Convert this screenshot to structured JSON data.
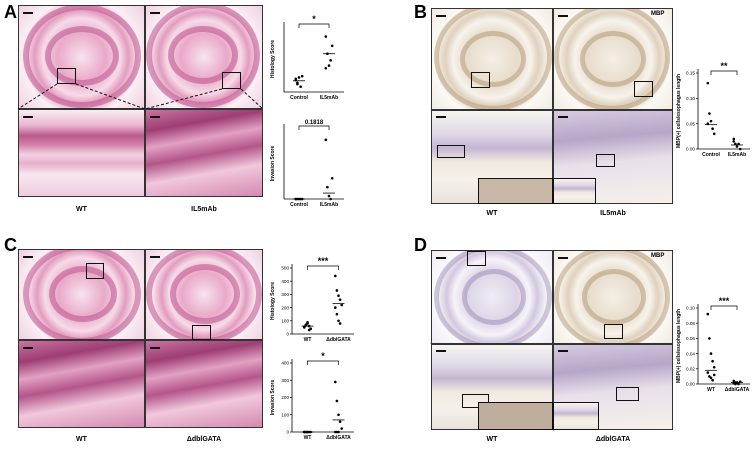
{
  "panels": {
    "A": {
      "letter": "A",
      "captions": [
        "WT",
        "IL5mAb"
      ],
      "plots": [
        {
          "ylabel": "Histology Score",
          "sig": "*",
          "categories": [
            "Control",
            "IL5mAb"
          ],
          "ylim": [
            0,
            500
          ],
          "points": [
            [
              90,
              60,
              110,
              40,
              120,
              100,
              70
            ],
            [
              420,
              290,
              200,
              240,
              350,
              180
            ]
          ],
          "medians": [
            85,
            290
          ]
        },
        {
          "ylabel": "Invasion Score",
          "sig": "0.1818",
          "categories": [
            "Control",
            "IL5mAb"
          ],
          "ylim": [
            0,
            1.2
          ],
          "points": [
            [
              0,
              0,
              0,
              0,
              0,
              0
            ],
            [
              1.0,
              0.2,
              0.05,
              0,
              0.35
            ]
          ],
          "medians": [
            0,
            0.1
          ]
        }
      ]
    },
    "B": {
      "letter": "B",
      "stain": "MBP",
      "captions": [
        "WT",
        "IL5mAb"
      ],
      "plots": [
        {
          "ylabel": "MBP(+) cells/esophagus length",
          "sig": "**",
          "categories": [
            "Control",
            "IL5mAb"
          ],
          "yticks": [
            "0.00",
            "0.05",
            "0.10",
            "0.15"
          ],
          "ylim": [
            0,
            0.15
          ],
          "points": [
            [
              0.13,
              0.07,
              0.055,
              0.04,
              0.03,
              0.05
            ],
            [
              0.02,
              0.01,
              0.005,
              0.01,
              0.0,
              0.015
            ]
          ],
          "medians": [
            0.048,
            0.008
          ]
        }
      ]
    },
    "C": {
      "letter": "C",
      "captions": [
        "WT",
        "ΔdblGATA"
      ],
      "plots": [
        {
          "ylabel": "Histology Score",
          "sig": "***",
          "categories": [
            "WT",
            "ΔdblGATA"
          ],
          "yticks": [
            "0",
            "100",
            "200",
            "300",
            "400",
            "500"
          ],
          "ylim": [
            0,
            500
          ],
          "points": [
            [
              50,
              70,
              80,
              60,
              40,
              55,
              65,
              90,
              30
            ],
            [
              440,
              330,
              290,
              260,
              220,
              200,
              150,
              100,
              80
            ]
          ],
          "medians": [
            60,
            230
          ]
        },
        {
          "ylabel": "Invasion Score",
          "sig": "*",
          "categories": [
            "WT",
            "ΔdblGATA"
          ],
          "yticks": [
            "0",
            "100",
            "200",
            "300",
            "400"
          ],
          "ylim": [
            0,
            400
          ],
          "points": [
            [
              0,
              0,
              0,
              0,
              0,
              0,
              0,
              0
            ],
            [
              290,
              180,
              100,
              60,
              20,
              0,
              0,
              0
            ]
          ],
          "medians": [
            0,
            70
          ]
        }
      ]
    },
    "D": {
      "letter": "D",
      "stain": "MBP",
      "captions": [
        "WT",
        "ΔdblGATA"
      ],
      "plots": [
        {
          "ylabel": "MBP(+) cells/esophagus length",
          "sig": "***",
          "categories": [
            "WT",
            "ΔdblGATA"
          ],
          "yticks": [
            "0.00",
            "0.02",
            "0.04",
            "0.06",
            "0.08",
            "0.10"
          ],
          "ylim": [
            0,
            0.1
          ],
          "points": [
            [
              0.092,
              0.06,
              0.04,
              0.03,
              0.022,
              0.015,
              0.01,
              0.008,
              0.005,
              0.012
            ],
            [
              0.004,
              0.002,
              0.001,
              0.0,
              0.003,
              0.001,
              0.0,
              0.002
            ]
          ],
          "medians": [
            0.018,
            0.002
          ]
        }
      ]
    }
  }
}
